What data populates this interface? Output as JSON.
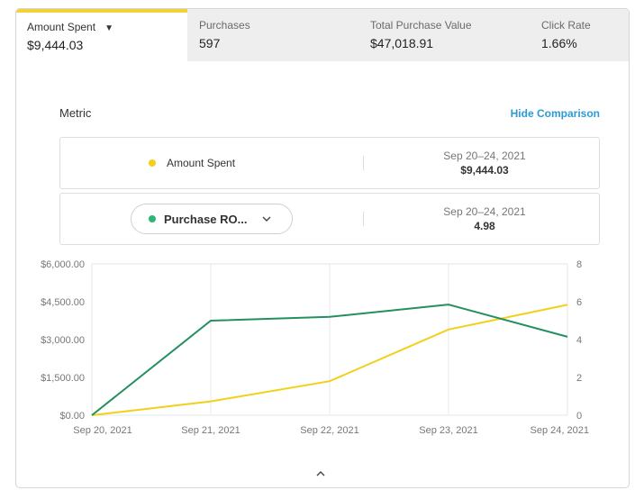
{
  "tabs": [
    {
      "label": "Amount Spent",
      "value": "$9,444.03",
      "active": true
    },
    {
      "label": "Purchases",
      "value": "597"
    },
    {
      "label": "Total Purchase Value",
      "value": "$47,018.91"
    },
    {
      "label": "Click Rate",
      "value": "1.66%"
    }
  ],
  "caret_glyph": "▼",
  "metric_title": "Metric",
  "hide_comparison": "Hide Comparison",
  "metric_rows": [
    {
      "name": "Amount Spent",
      "dates": "Sep 20–24, 2021",
      "value": "$9,444.03",
      "color": "#f2d01a"
    },
    {
      "name": "Purchase RO...",
      "dates": "Sep 20–24, 2021",
      "value": "4.98",
      "color": "#2bb673"
    }
  ],
  "expand_glyph": "^",
  "chart_data": {
    "type": "line",
    "x": [
      "Sep 20, 2021",
      "Sep 21, 2021",
      "Sep 22, 2021",
      "Sep 23, 2021",
      "Sep 24, 2021"
    ],
    "left_axis": {
      "ticks": [
        "$0.00",
        "$1,500.00",
        "$3,000.00",
        "$4,500.00",
        "$6,000.00"
      ],
      "ylim": [
        0,
        6000
      ]
    },
    "right_axis": {
      "ticks": [
        "0",
        "2",
        "4",
        "6",
        "8"
      ],
      "ylim": [
        0,
        8
      ]
    },
    "series": [
      {
        "axis": "left",
        "color": "#f2d01a",
        "values": [
          0,
          550,
          1350,
          3400,
          4380
        ]
      },
      {
        "axis": "right",
        "color": "#23905f",
        "values": [
          0,
          5.0,
          5.2,
          5.85,
          4.15
        ]
      }
    ],
    "grid": true,
    "legend": "none"
  }
}
